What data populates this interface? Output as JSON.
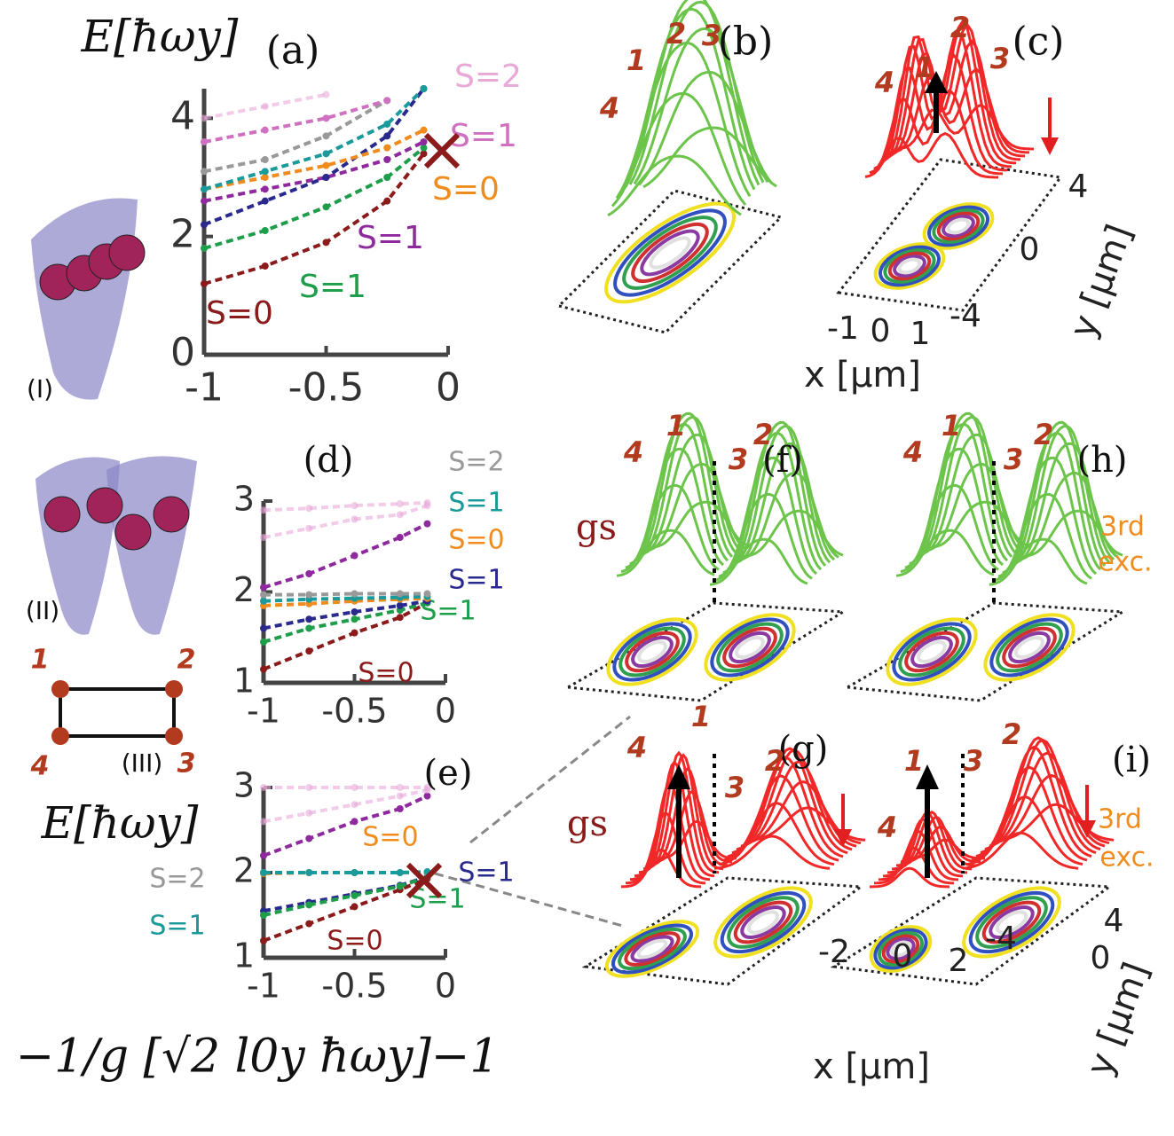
{
  "chart_data": [
    {
      "type": "line",
      "ylabel": "E[ħωy]",
      "x": [
        -1,
        -0.75,
        -0.5,
        -0.25,
        -0.1
      ],
      "xlim": [
        -1,
        0
      ],
      "xticks": [
        -1,
        -0.5,
        0
      ],
      "ylim": [
        0,
        4.5
      ],
      "yticks": [
        0,
        2,
        4
      ],
      "series": [
        {
          "name": "S=0",
          "color": "#8b1a1a",
          "values": [
            1.2,
            1.5,
            1.9,
            2.6,
            3.4
          ]
        },
        {
          "name": "S=1",
          "color": "#1e9e4a",
          "values": [
            1.8,
            2.1,
            2.5,
            3.0,
            3.5
          ]
        },
        {
          "name": "S=1",
          "color": "#8e2a9e",
          "values": [
            2.6,
            2.8,
            3.0,
            3.3,
            3.6
          ]
        },
        {
          "color": "#2a2a8e",
          "values": [
            2.2,
            2.6,
            3.0,
            3.7,
            4.5
          ]
        },
        {
          "name": "S=0",
          "color": "#f08c1e",
          "values": [
            2.8,
            3.0,
            3.2,
            3.5,
            3.8
          ]
        },
        {
          "color": "#1a9a9a",
          "values": [
            2.8,
            3.1,
            3.4,
            3.9,
            4.5
          ]
        },
        {
          "color": "#999999",
          "values": [
            3.1,
            3.3,
            3.7,
            4.3,
            null
          ]
        },
        {
          "name": "S=1",
          "color": "#d070c0",
          "values": [
            3.6,
            3.8,
            4.0,
            4.3,
            null
          ]
        },
        {
          "name": "S=2",
          "color": "#e8a8d8",
          "values": [
            4.0,
            4.2,
            4.4,
            null,
            null
          ]
        }
      ]
    },
    {
      "type": "line",
      "x": [
        -1,
        -0.75,
        -0.5,
        -0.25,
        -0.1
      ],
      "xlim": [
        -1,
        0
      ],
      "xticks": [
        -1,
        -0.5,
        0
      ],
      "ylim": [
        1,
        3
      ],
      "yticks": [
        1,
        2,
        3
      ],
      "series": [
        {
          "name": "S=0",
          "color": "#8b1a1a",
          "values": [
            1.15,
            1.35,
            1.55,
            1.72,
            1.88
          ]
        },
        {
          "name": "S=1",
          "color": "#1e9e4a",
          "values": [
            1.45,
            1.6,
            1.7,
            1.8,
            1.88
          ]
        },
        {
          "name": "S=1",
          "color": "#2a2a8e",
          "values": [
            1.6,
            1.7,
            1.78,
            1.85,
            1.9
          ]
        },
        {
          "name": "S=0",
          "color": "#f08c1e",
          "values": [
            1.85,
            1.87,
            1.9,
            1.92,
            1.93
          ]
        },
        {
          "name": "S=1",
          "color": "#1a9a9a",
          "values": [
            1.9,
            1.92,
            1.93,
            1.94,
            1.95
          ]
        },
        {
          "name": "S=2",
          "color": "#999999",
          "values": [
            1.97,
            1.97,
            1.98,
            1.98,
            1.98
          ]
        },
        {
          "color": "#8e2a9e",
          "values": [
            2.05,
            2.2,
            2.4,
            2.6,
            2.75
          ]
        },
        {
          "color": "#e8a8d8",
          "values": [
            2.6,
            2.7,
            2.8,
            2.85,
            2.95
          ]
        },
        {
          "color": "#e8a8d8",
          "values": [
            2.9,
            2.92,
            2.95,
            2.97,
            2.98
          ]
        }
      ]
    },
    {
      "type": "line",
      "ylabel": "E[ħωy]",
      "xlabel": "−1/g  [√2 l0y ħωy]−1",
      "x": [
        -1,
        -0.75,
        -0.5,
        -0.25,
        -0.1
      ],
      "xlim": [
        -1,
        0
      ],
      "xticks": [
        -1,
        -0.5,
        0
      ],
      "ylim": [
        1,
        3
      ],
      "yticks": [
        1,
        2,
        3
      ],
      "series": [
        {
          "name": "S=0",
          "color": "#8b1a1a",
          "values": [
            1.2,
            1.4,
            1.6,
            1.8,
            1.93
          ]
        },
        {
          "name": "S=1",
          "color": "#2a2a8e",
          "values": [
            1.55,
            1.65,
            1.75,
            1.85,
            1.95
          ]
        },
        {
          "name": "S=1",
          "color": "#1e9e4a",
          "values": [
            1.5,
            1.62,
            1.73,
            1.84,
            1.95
          ]
        },
        {
          "name": "S=0",
          "color": "#f08c1e",
          "values": [
            1.99,
            2.0,
            2.0,
            2.0,
            2.0
          ]
        },
        {
          "name": "S=2",
          "color": "#999999",
          "values": [
            2.0,
            2.0,
            2.0,
            2.0,
            2.0
          ]
        },
        {
          "name": "S=1",
          "color": "#1a9a9a",
          "values": [
            2.0,
            2.0,
            2.0,
            2.0,
            2.01
          ]
        },
        {
          "color": "#8e2a9e",
          "values": [
            2.2,
            2.4,
            2.6,
            2.75,
            2.9
          ]
        },
        {
          "color": "#e8a8d8",
          "values": [
            2.6,
            2.7,
            2.8,
            2.9,
            2.97
          ]
        },
        {
          "color": "#e8a8d8",
          "values": [
            3.0,
            3.0,
            3.0,
            3.0,
            3.0
          ]
        }
      ]
    }
  ],
  "labels": [
    "(a)",
    "(b)",
    "(c)",
    "(d)",
    "(e)",
    "(f)",
    "(g)",
    "(h)",
    "(i)",
    "(I)",
    "(II)",
    "(III)",
    "1",
    "2",
    "4",
    "3",
    "1",
    "2",
    "3",
    "4",
    "1",
    "2",
    "3",
    "4",
    "4",
    "1",
    "3",
    "2",
    "4",
    "1",
    "3",
    "2",
    "4",
    "1",
    "3",
    "2",
    "1",
    "3",
    "2",
    "4",
    "gs",
    "gs",
    "3rd",
    "exc.",
    "3rd",
    "exc.",
    "-1",
    "0",
    "1",
    "-4",
    "0",
    "4",
    "x [µm]",
    "y [µm]",
    "-2",
    "0",
    "2",
    "-4",
    "0",
    "4",
    "x [µm]",
    "y [µm]"
  ]
}
